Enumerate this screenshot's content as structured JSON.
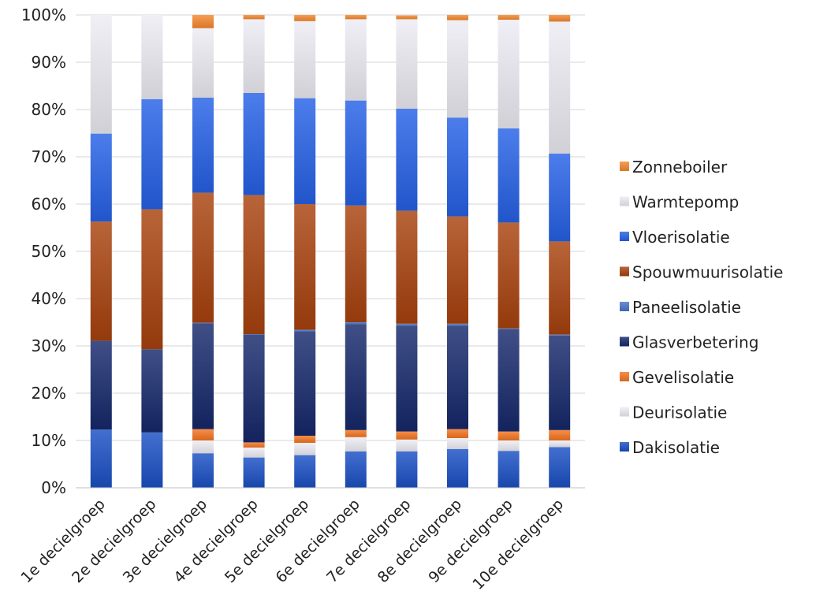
{
  "chart_data": {
    "type": "bar",
    "stacked": true,
    "normalized_percent": true,
    "title": "",
    "xlabel": "",
    "ylabel": "",
    "ylim": [
      0,
      100
    ],
    "yticks": [
      "0%",
      "10%",
      "20%",
      "30%",
      "40%",
      "50%",
      "60%",
      "70%",
      "80%",
      "90%",
      "100%"
    ],
    "grid": true,
    "legend_position": "right",
    "categories": [
      "1e decielgroep",
      "2e decielgroep",
      "3e decielgroep",
      "4e decielgroep",
      "5e decielgroep",
      "6e decielgroep",
      "7e decielgroep",
      "8e decielgroep",
      "9e decielgroep",
      "10e decielgroep"
    ],
    "series": [
      {
        "name": "Dakisolatie",
        "color": "#1a4fc4",
        "values": [
          12.3,
          11.7,
          7.3,
          6.4,
          6.9,
          7.7,
          7.7,
          8.2,
          7.8,
          8.6
        ]
      },
      {
        "name": "Deurisolatie",
        "color": "#ededf4",
        "values": [
          0,
          0,
          2.7,
          2.1,
          2.6,
          3.0,
          2.5,
          2.3,
          2.2,
          1.4
        ]
      },
      {
        "name": "Gevelisolatie",
        "color": "#f47521",
        "values": [
          0,
          0,
          2.4,
          1.1,
          1.5,
          1.5,
          1.7,
          1.9,
          1.9,
          2.2
        ]
      },
      {
        "name": "Glasverbetering",
        "color": "#16286b",
        "values": [
          18.8,
          17.6,
          22.4,
          22.8,
          22.0,
          22.4,
          22.4,
          21.9,
          21.6,
          20.0
        ]
      },
      {
        "name": "Paneelisolatie",
        "color": "#4a74c9",
        "values": [
          0,
          0,
          0.1,
          0.1,
          0.4,
          0.4,
          0.4,
          0.4,
          0.2,
          0.2
        ]
      },
      {
        "name": "Spouwmuurisolatie",
        "color": "#a8420e",
        "values": [
          25.2,
          29.6,
          27.5,
          29.4,
          26.6,
          24.7,
          23.9,
          22.7,
          22.4,
          19.7
        ]
      },
      {
        "name": "Vloerisolatie",
        "color": "#2561e6",
        "values": [
          18.6,
          23.3,
          20.1,
          21.6,
          22.4,
          22.2,
          21.6,
          20.9,
          19.9,
          18.6
        ]
      },
      {
        "name": "Warmtepomp",
        "color": "#ececf3",
        "values": [
          25.1,
          17.8,
          14.7,
          15.6,
          16.3,
          17.2,
          18.9,
          20.6,
          23.0,
          27.9
        ]
      },
      {
        "name": "Zonneboiler",
        "color": "#f5882e",
        "values": [
          0,
          0,
          2.8,
          0.9,
          1.3,
          0.9,
          0.8,
          1.1,
          1.0,
          1.4
        ]
      }
    ]
  }
}
